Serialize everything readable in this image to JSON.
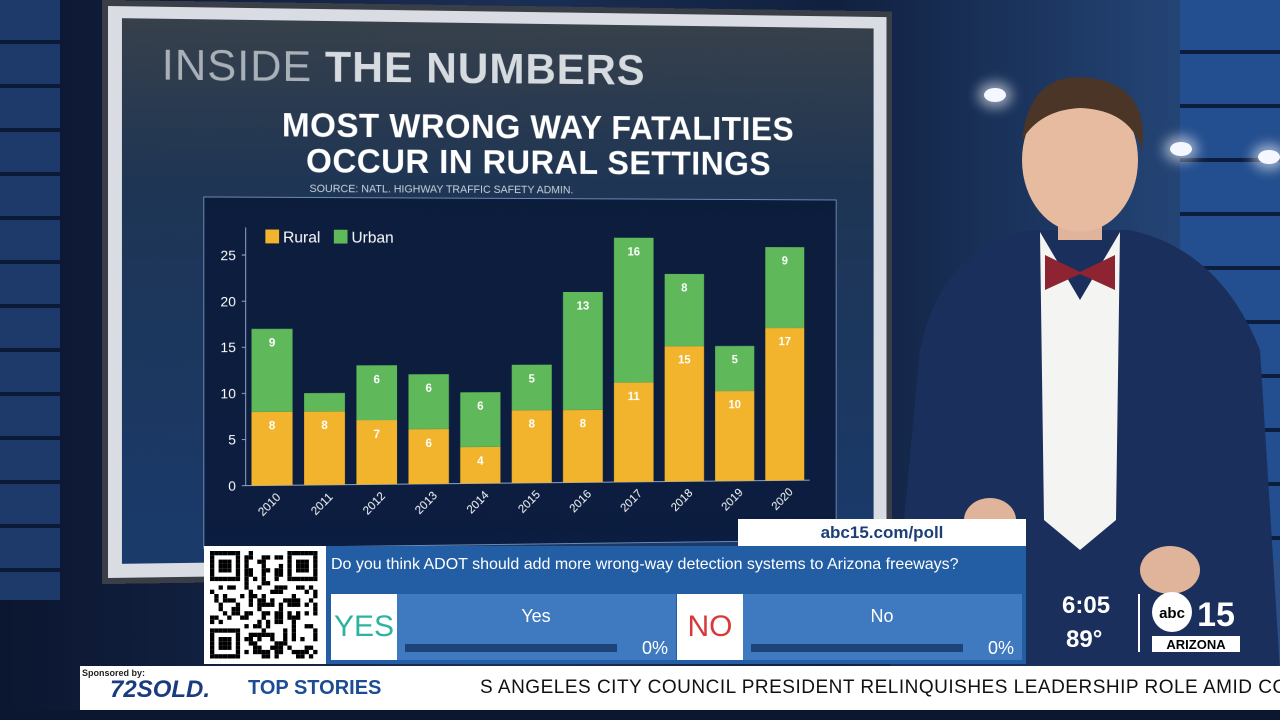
{
  "graphic": {
    "header_light": "INSIDE ",
    "header_bold": "THE NUMBERS",
    "title_line1": "MOST WRONG WAY FATALITIES",
    "title_line2": "OCCUR IN RURAL SETTINGS",
    "source": "SOURCE: NATL. HIGHWAY TRAFFIC SAFETY ADMIN."
  },
  "chart_data": {
    "type": "bar",
    "stacked": true,
    "categories": [
      "2010",
      "2011",
      "2012",
      "2013",
      "2014",
      "2015",
      "2016",
      "2017",
      "2018",
      "2019",
      "2020"
    ],
    "series": [
      {
        "name": "Rural",
        "color": "#f2b42c",
        "values": [
          8,
          8,
          7,
          6,
          4,
          8,
          8,
          11,
          15,
          10,
          17
        ],
        "labels": [
          "8",
          "8",
          "7",
          "6",
          "4",
          "8",
          "8",
          "11",
          "15",
          "10",
          "17"
        ]
      },
      {
        "name": "Urban",
        "color": "#5fb85a",
        "values": [
          9,
          2,
          6,
          6,
          6,
          5,
          13,
          16,
          8,
          5,
          9
        ],
        "labels": [
          "9",
          "",
          "6",
          "6",
          "6",
          "5",
          "13",
          "16",
          "8",
          "5",
          "9"
        ]
      }
    ],
    "ylim": [
      0,
      28
    ],
    "yticks": [
      "0",
      "5",
      "10",
      "15",
      "20",
      "25"
    ],
    "legend_position": "top-left",
    "grid": false
  },
  "poll": {
    "url": "abc15.com/poll",
    "question": "Do you think ADOT should add more wrong-way detection systems to Arizona freeways?",
    "yes_big": "YES",
    "yes_label": "Yes",
    "yes_pct": "0%",
    "no_big": "NO",
    "no_label": "No",
    "no_pct": "0%"
  },
  "station": {
    "time": "6:05",
    "temp": "89°",
    "logo_text": "abc",
    "logo_number": "15",
    "logo_region": "ARIZONA"
  },
  "ticker": {
    "sponsored": "Sponsored by:",
    "sponsor_brand": "72SOLD.",
    "section": "TOP STORIES",
    "headline": "S ANGELES CITY COUNCIL PRESIDENT RELINQUISHES LEADERSHIP ROLE AMID CONTROV"
  },
  "colors": {
    "yes": "#2db3a0",
    "no": "#d83a3a",
    "rural": "#f2b42c",
    "urban": "#5fb85a"
  }
}
